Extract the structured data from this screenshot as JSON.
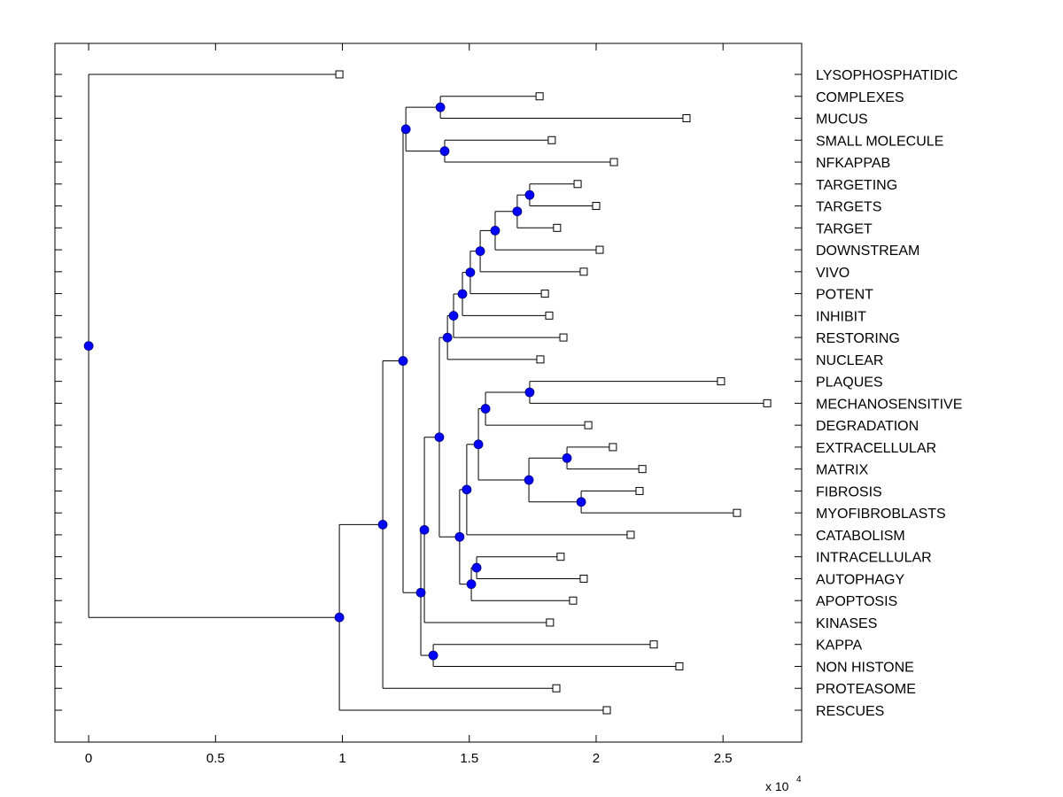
{
  "chart_data": {
    "type": "dendrogram",
    "title": "",
    "xlabel": "",
    "ylabel": "",
    "x_multiplier_label": "x 10",
    "x_multiplier_exponent": "4",
    "xlim": [
      -0.133,
      2.81
    ],
    "xticks": [
      0,
      0.5,
      1,
      1.5,
      2,
      2.5
    ],
    "xtick_labels": [
      "0",
      "0.5",
      "1",
      "1.5",
      "2",
      "2.5"
    ],
    "grid": false,
    "orientation": "horizontal",
    "colors": {
      "internal_node": "#0000ff",
      "leaf_marker": "#ffffff",
      "line": "#000000"
    },
    "leaves": [
      {
        "id": "L1",
        "label": "LYSOPHOSPHATIDIC",
        "x": 0.988
      },
      {
        "id": "L2",
        "label": "COMPLEXES",
        "x": 1.777
      },
      {
        "id": "L3",
        "label": "MUCUS",
        "x": 2.356
      },
      {
        "id": "L4",
        "label": "SMALL MOLECULE",
        "x": 1.825
      },
      {
        "id": "L5",
        "label": "NFKAPPAB",
        "x": 2.07
      },
      {
        "id": "L6",
        "label": "TARGETING",
        "x": 1.927
      },
      {
        "id": "L7",
        "label": "TARGETS",
        "x": 2.0
      },
      {
        "id": "L8",
        "label": "TARGET",
        "x": 1.846
      },
      {
        "id": "L9",
        "label": "DOWNSTREAM",
        "x": 2.014
      },
      {
        "id": "L10",
        "label": "VIVO",
        "x": 1.951
      },
      {
        "id": "L11",
        "label": "POTENT",
        "x": 1.798
      },
      {
        "id": "L12",
        "label": "INHIBIT",
        "x": 1.815
      },
      {
        "id": "L13",
        "label": "RESTORING",
        "x": 1.871
      },
      {
        "id": "L14",
        "label": "NUCLEAR",
        "x": 1.78
      },
      {
        "id": "L15",
        "label": "PLAQUES",
        "x": 2.492
      },
      {
        "id": "L16",
        "label": "MECHANOSENSITIVE",
        "x": 2.674
      },
      {
        "id": "L17",
        "label": "DEGRADATION",
        "x": 1.969
      },
      {
        "id": "L18",
        "label": "EXTRACELLULAR",
        "x": 2.066
      },
      {
        "id": "L19",
        "label": "MATRIX",
        "x": 2.182
      },
      {
        "id": "L20",
        "label": "FIBROSIS",
        "x": 2.171
      },
      {
        "id": "L21",
        "label": "MYOFIBROBLASTS",
        "x": 2.555
      },
      {
        "id": "L22",
        "label": "CATABOLISM",
        "x": 2.136
      },
      {
        "id": "L23",
        "label": "INTRACELLULAR",
        "x": 1.86
      },
      {
        "id": "L24",
        "label": "AUTOPHAGY",
        "x": 1.951
      },
      {
        "id": "L25",
        "label": "APOPTOSIS",
        "x": 1.909
      },
      {
        "id": "L26",
        "label": "KINASES",
        "x": 1.818
      },
      {
        "id": "L27",
        "label": "KAPPA",
        "x": 2.227
      },
      {
        "id": "L28",
        "label": "NON HISTONE",
        "x": 2.328
      },
      {
        "id": "L29",
        "label": "PROTEASOME",
        "x": 1.843
      },
      {
        "id": "L30",
        "label": "RESCUES",
        "x": 2.042
      }
    ],
    "internal_nodes": [
      {
        "id": "n_cm",
        "x": 1.386,
        "children": [
          "L2",
          "L3"
        ]
      },
      {
        "id": "n_sn",
        "x": 1.403,
        "children": [
          "L4",
          "L5"
        ]
      },
      {
        "id": "n_top4",
        "x": 1.25,
        "children": [
          "n_cm",
          "n_sn"
        ]
      },
      {
        "id": "n1",
        "x": 1.738,
        "children": [
          "L6",
          "L7"
        ]
      },
      {
        "id": "n2",
        "x": 1.689,
        "children": [
          "n1",
          "L8"
        ]
      },
      {
        "id": "n3",
        "x": 1.602,
        "children": [
          "n2",
          "L9"
        ]
      },
      {
        "id": "n4",
        "x": 1.543,
        "children": [
          "n3",
          "L10"
        ]
      },
      {
        "id": "n5",
        "x": 1.504,
        "children": [
          "n4",
          "L11"
        ]
      },
      {
        "id": "n6",
        "x": 1.473,
        "children": [
          "n5",
          "L12"
        ]
      },
      {
        "id": "n7",
        "x": 1.438,
        "children": [
          "n6",
          "L13"
        ]
      },
      {
        "id": "n8",
        "x": 1.414,
        "children": [
          "n7",
          "L14"
        ]
      },
      {
        "id": "n_pm",
        "x": 1.738,
        "children": [
          "L15",
          "L16"
        ]
      },
      {
        "id": "n_deg",
        "x": 1.564,
        "children": [
          "n_pm",
          "L17"
        ]
      },
      {
        "id": "n_em",
        "x": 1.885,
        "children": [
          "L18",
          "L19"
        ]
      },
      {
        "id": "n_fm",
        "x": 1.941,
        "children": [
          "L20",
          "L21"
        ]
      },
      {
        "id": "n_emfm",
        "x": 1.735,
        "children": [
          "n_em",
          "n_fm"
        ]
      },
      {
        "id": "n_ext",
        "x": 1.536,
        "children": [
          "n_deg",
          "n_emfm"
        ]
      },
      {
        "id": "n_cat",
        "x": 1.49,
        "children": [
          "n_ext",
          "L22"
        ]
      },
      {
        "id": "n_ia",
        "x": 1.529,
        "children": [
          "L23",
          "L24"
        ]
      },
      {
        "id": "n_iaa",
        "x": 1.508,
        "children": [
          "n_ia",
          "L25"
        ]
      },
      {
        "id": "n_cat2",
        "x": 1.462,
        "children": [
          "n_cat",
          "n_iaa"
        ]
      },
      {
        "id": "n_b",
        "x": 1.382,
        "children": [
          "n8",
          "n_cat2"
        ]
      },
      {
        "id": "n_c",
        "x": 1.323,
        "children": [
          "n_b",
          "L26"
        ]
      },
      {
        "id": "n_kn",
        "x": 1.358,
        "children": [
          "L27",
          "L28"
        ]
      },
      {
        "id": "n_d",
        "x": 1.309,
        "children": [
          "n_c",
          "n_kn"
        ]
      },
      {
        "id": "n_big",
        "x": 1.239,
        "children": [
          "n_top4",
          "n_d"
        ]
      },
      {
        "id": "n_e",
        "x": 1.159,
        "children": [
          "n_big",
          "L29"
        ]
      },
      {
        "id": "n_root2",
        "x": 0.988,
        "children": [
          "n_e",
          "L30"
        ]
      },
      {
        "id": "root",
        "x": 0.0,
        "children": [
          "L1",
          "n_root2"
        ]
      }
    ]
  }
}
